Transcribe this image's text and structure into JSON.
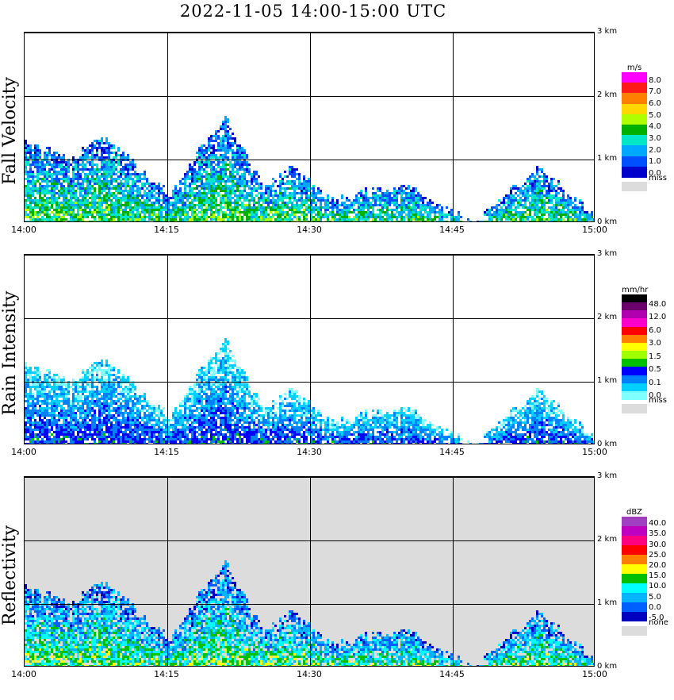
{
  "title": "2022-11-05   14:00-15:00 UTC",
  "x_ticks": [
    "14:00",
    "14:15",
    "14:30",
    "14:45",
    "15:00"
  ],
  "y_ticks": [
    "0 km",
    "1 km",
    "2 km",
    "3 km"
  ],
  "chart_data": [
    {
      "type": "heatmap",
      "ylabel": "Fall Velocity",
      "unit": "m/s",
      "xlim": [
        "14:00",
        "15:00"
      ],
      "ylim_km": [
        0,
        3
      ],
      "colorbar": {
        "labels": [
          "8.0",
          "7.0",
          "6.0",
          "5.0",
          "4.0",
          "3.0",
          "2.0",
          "1.0",
          "0.0"
        ],
        "colors": [
          "#ff00ff",
          "#ff1a1a",
          "#ff7f00",
          "#ffd700",
          "#b0ff00",
          "#00b000",
          "#00e6c8",
          "#00a8ff",
          "#0050ff",
          "#0000cc"
        ],
        "missing_label": "miss"
      },
      "echo_tops_km": [
        {
          "time": "14:00",
          "top": 1.3
        },
        {
          "time": "14:05",
          "top": 1.0
        },
        {
          "time": "14:08",
          "top": 1.4
        },
        {
          "time": "14:12",
          "top": 0.9
        },
        {
          "time": "14:15",
          "top": 0.5
        },
        {
          "time": "14:21",
          "top": 1.7
        },
        {
          "time": "14:25",
          "top": 0.6
        },
        {
          "time": "14:28",
          "top": 0.9
        },
        {
          "time": "14:32",
          "top": 0.4
        },
        {
          "time": "14:40",
          "top": 0.6
        },
        {
          "time": "14:47",
          "top": 0.0
        },
        {
          "time": "14:54",
          "top": 0.9
        },
        {
          "time": "15:00",
          "top": 0.1
        }
      ]
    },
    {
      "type": "heatmap",
      "ylabel": "Rain Intensity",
      "unit": "mm/hr",
      "xlim": [
        "14:00",
        "15:00"
      ],
      "ylim_km": [
        0,
        3
      ],
      "colorbar": {
        "labels": [
          "48.0",
          "12.0",
          "6.0",
          "3.0",
          "1.5",
          "0.5",
          "0.1",
          "0.0"
        ],
        "colors": [
          "#000000",
          "#6a006a",
          "#b000b0",
          "#ff00cc",
          "#ff0000",
          "#ff8000",
          "#ffff00",
          "#a0ff00",
          "#00c000",
          "#0000ff",
          "#0080ff",
          "#00d0ff",
          "#80ffff"
        ],
        "missing_label": "miss"
      },
      "echo_tops_km": [
        {
          "time": "14:00",
          "top": 1.3
        },
        {
          "time": "14:05",
          "top": 1.0
        },
        {
          "time": "14:08",
          "top": 1.4
        },
        {
          "time": "14:12",
          "top": 0.9
        },
        {
          "time": "14:15",
          "top": 0.5
        },
        {
          "time": "14:21",
          "top": 1.7
        },
        {
          "time": "14:25",
          "top": 0.6
        },
        {
          "time": "14:28",
          "top": 0.9
        },
        {
          "time": "14:32",
          "top": 0.4
        },
        {
          "time": "14:40",
          "top": 0.6
        },
        {
          "time": "14:47",
          "top": 0.0
        },
        {
          "time": "14:54",
          "top": 0.9
        },
        {
          "time": "15:00",
          "top": 0.1
        }
      ]
    },
    {
      "type": "heatmap",
      "ylabel": "Reflectivity",
      "unit": "dBZ",
      "xlim": [
        "14:00",
        "15:00"
      ],
      "ylim_km": [
        0,
        3
      ],
      "colorbar": {
        "labels": [
          "40.0",
          "35.0",
          "30.0",
          "25.0",
          "20.0",
          "15.0",
          "10.0",
          "5.0",
          "0.0",
          "-5.0"
        ],
        "colors": [
          "#a040c0",
          "#c000c0",
          "#ff0080",
          "#ff0000",
          "#ff7f00",
          "#ffff00",
          "#00c000",
          "#00ffff",
          "#00b4ff",
          "#0060ff",
          "#0000c0"
        ],
        "missing_label": "none"
      },
      "echo_tops_km": [
        {
          "time": "14:00",
          "top": 1.3
        },
        {
          "time": "14:05",
          "top": 1.0
        },
        {
          "time": "14:08",
          "top": 1.4
        },
        {
          "time": "14:12",
          "top": 0.9
        },
        {
          "time": "14:15",
          "top": 0.5
        },
        {
          "time": "14:21",
          "top": 1.7
        },
        {
          "time": "14:25",
          "top": 0.6
        },
        {
          "time": "14:28",
          "top": 0.9
        },
        {
          "time": "14:32",
          "top": 0.4
        },
        {
          "time": "14:40",
          "top": 0.6
        },
        {
          "time": "14:47",
          "top": 0.0
        },
        {
          "time": "14:54",
          "top": 0.9
        },
        {
          "time": "15:00",
          "top": 0.1
        }
      ]
    }
  ]
}
